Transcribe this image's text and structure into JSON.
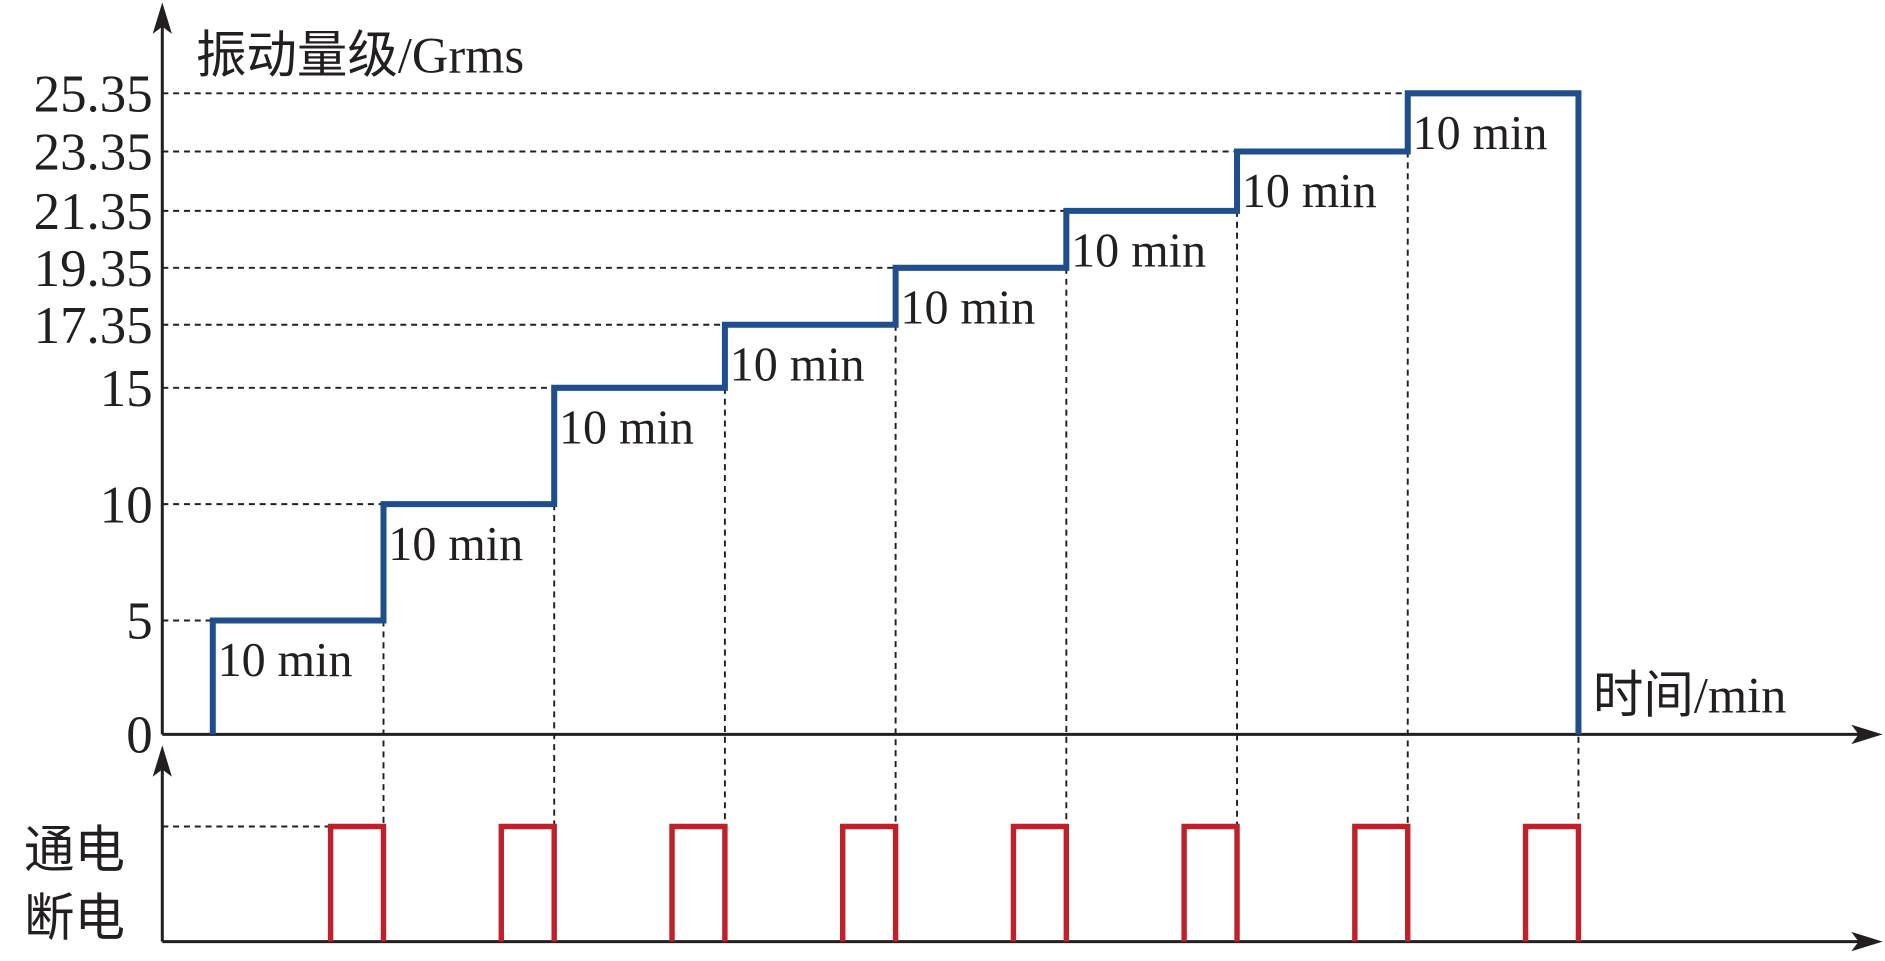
{
  "chart_data": [
    {
      "type": "step",
      "title": "振动量级/Grms",
      "x_label": "时间/min",
      "color": "#1f4e8c",
      "values": [
        5,
        10,
        15,
        17.35,
        19.35,
        21.35,
        23.35,
        25.35
      ],
      "duration_labels": [
        "10 min",
        "10 min",
        "10 min",
        "10 min",
        "10 min",
        "10 min",
        "10 min",
        "10 min"
      ],
      "yticks": [
        0,
        5,
        10,
        15,
        17.35,
        19.35,
        21.35,
        23.35,
        25.35
      ],
      "ylim": [
        0,
        25.35
      ]
    },
    {
      "type": "pulse",
      "categories": [
        "通电",
        "断电"
      ],
      "color": "#c0202a"
    }
  ]
}
